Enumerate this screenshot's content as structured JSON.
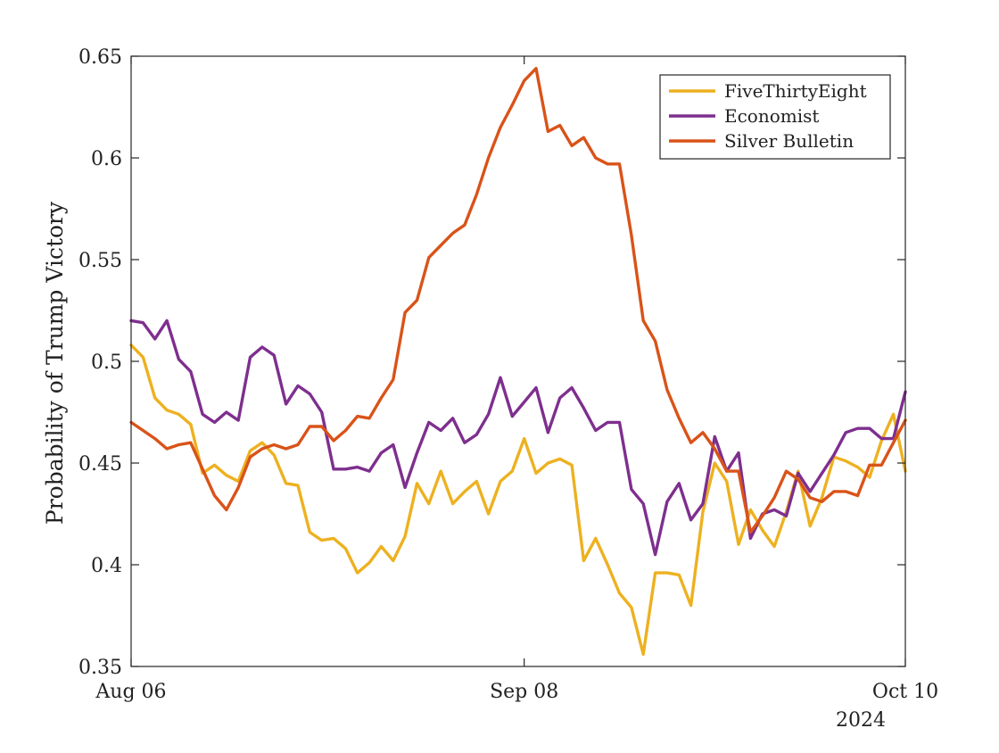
{
  "chart_data": {
    "type": "line",
    "title": "",
    "xlabel": "",
    "ylabel": "Probability of Trump Victory",
    "x_start": "2024-08-06",
    "x_end": "2024-10-10",
    "x_ticks": [
      {
        "date": "2024-08-06",
        "label": "Aug 06"
      },
      {
        "date": "2024-09-08",
        "label": "Sep 08"
      },
      {
        "date": "2024-10-10",
        "label": "Oct 10"
      }
    ],
    "x_year_label": "2024",
    "ylim": [
      0.35,
      0.65
    ],
    "y_ticks": [
      0.35,
      0.4,
      0.45,
      0.5,
      0.55,
      0.6,
      0.65
    ],
    "y_tick_labels": [
      "0.35",
      "0.4",
      "0.45",
      "0.5",
      "0.55",
      "0.6",
      "0.65"
    ],
    "grid": false,
    "legend_position": "top-right",
    "series": [
      {
        "name": "FiveThirtyEight",
        "color": "#EDB120",
        "points": [
          [
            "2024-08-06",
            0.508
          ],
          [
            "2024-08-07",
            0.502
          ],
          [
            "2024-08-08",
            0.482
          ],
          [
            "2024-08-09",
            0.476
          ],
          [
            "2024-08-10",
            0.474
          ],
          [
            "2024-08-11",
            0.469
          ],
          [
            "2024-08-12",
            0.445
          ],
          [
            "2024-08-13",
            0.449
          ],
          [
            "2024-08-14",
            0.444
          ],
          [
            "2024-08-15",
            0.441
          ],
          [
            "2024-08-16",
            0.456
          ],
          [
            "2024-08-17",
            0.46
          ],
          [
            "2024-08-18",
            0.454
          ],
          [
            "2024-08-19",
            0.44
          ],
          [
            "2024-08-20",
            0.439
          ],
          [
            "2024-08-21",
            0.416
          ],
          [
            "2024-08-22",
            0.412
          ],
          [
            "2024-08-23",
            0.413
          ],
          [
            "2024-08-24",
            0.408
          ],
          [
            "2024-08-25",
            0.396
          ],
          [
            "2024-08-26",
            0.401
          ],
          [
            "2024-08-27",
            0.409
          ],
          [
            "2024-08-28",
            0.402
          ],
          [
            "2024-08-29",
            0.414
          ],
          [
            "2024-08-30",
            0.44
          ],
          [
            "2024-08-31",
            0.43
          ],
          [
            "2024-09-01",
            0.446
          ],
          [
            "2024-09-02",
            0.43
          ],
          [
            "2024-09-03",
            0.436
          ],
          [
            "2024-09-04",
            0.441
          ],
          [
            "2024-09-05",
            0.425
          ],
          [
            "2024-09-06",
            0.441
          ],
          [
            "2024-09-07",
            0.446
          ],
          [
            "2024-09-08",
            0.462
          ],
          [
            "2024-09-09",
            0.445
          ],
          [
            "2024-09-10",
            0.45
          ],
          [
            "2024-09-11",
            0.452
          ],
          [
            "2024-09-12",
            0.449
          ],
          [
            "2024-09-13",
            0.402
          ],
          [
            "2024-09-14",
            0.413
          ],
          [
            "2024-09-15",
            0.4
          ],
          [
            "2024-09-16",
            0.386
          ],
          [
            "2024-09-17",
            0.379
          ],
          [
            "2024-09-18",
            0.356
          ],
          [
            "2024-09-19",
            0.396
          ],
          [
            "2024-09-20",
            0.396
          ],
          [
            "2024-09-21",
            0.395
          ],
          [
            "2024-09-22",
            0.38
          ],
          [
            "2024-09-23",
            0.426
          ],
          [
            "2024-09-24",
            0.45
          ],
          [
            "2024-09-25",
            0.441
          ],
          [
            "2024-09-26",
            0.41
          ],
          [
            "2024-09-27",
            0.427
          ],
          [
            "2024-09-28",
            0.417
          ],
          [
            "2024-09-29",
            0.409
          ],
          [
            "2024-09-30",
            0.426
          ],
          [
            "2024-10-01",
            0.446
          ],
          [
            "2024-10-02",
            0.419
          ],
          [
            "2024-10-03",
            0.433
          ],
          [
            "2024-10-04",
            0.453
          ],
          [
            "2024-10-05",
            0.451
          ],
          [
            "2024-10-06",
            0.448
          ],
          [
            "2024-10-07",
            0.443
          ],
          [
            "2024-10-08",
            0.461
          ],
          [
            "2024-10-09",
            0.474
          ],
          [
            "2024-10-10",
            0.446
          ]
        ]
      },
      {
        "name": "Economist",
        "color": "#7E2F8E",
        "points": [
          [
            "2024-08-06",
            0.52
          ],
          [
            "2024-08-07",
            0.519
          ],
          [
            "2024-08-08",
            0.511
          ],
          [
            "2024-08-09",
            0.52
          ],
          [
            "2024-08-10",
            0.501
          ],
          [
            "2024-08-11",
            0.495
          ],
          [
            "2024-08-12",
            0.474
          ],
          [
            "2024-08-13",
            0.47
          ],
          [
            "2024-08-14",
            0.475
          ],
          [
            "2024-08-15",
            0.471
          ],
          [
            "2024-08-16",
            0.502
          ],
          [
            "2024-08-17",
            0.507
          ],
          [
            "2024-08-18",
            0.503
          ],
          [
            "2024-08-19",
            0.479
          ],
          [
            "2024-08-20",
            0.488
          ],
          [
            "2024-08-21",
            0.484
          ],
          [
            "2024-08-22",
            0.475
          ],
          [
            "2024-08-23",
            0.447
          ],
          [
            "2024-08-24",
            0.447
          ],
          [
            "2024-08-25",
            0.448
          ],
          [
            "2024-08-26",
            0.446
          ],
          [
            "2024-08-27",
            0.455
          ],
          [
            "2024-08-28",
            0.459
          ],
          [
            "2024-08-29",
            0.438
          ],
          [
            "2024-08-30",
            0.455
          ],
          [
            "2024-08-31",
            0.47
          ],
          [
            "2024-09-01",
            0.466
          ],
          [
            "2024-09-02",
            0.472
          ],
          [
            "2024-09-03",
            0.46
          ],
          [
            "2024-09-04",
            0.464
          ],
          [
            "2024-09-05",
            0.474
          ],
          [
            "2024-09-06",
            0.492
          ],
          [
            "2024-09-07",
            0.473
          ],
          [
            "2024-09-08",
            0.48
          ],
          [
            "2024-09-09",
            0.487
          ],
          [
            "2024-09-10",
            0.465
          ],
          [
            "2024-09-11",
            0.482
          ],
          [
            "2024-09-12",
            0.487
          ],
          [
            "2024-09-13",
            0.477
          ],
          [
            "2024-09-14",
            0.466
          ],
          [
            "2024-09-15",
            0.47
          ],
          [
            "2024-09-16",
            0.47
          ],
          [
            "2024-09-17",
            0.437
          ],
          [
            "2024-09-18",
            0.43
          ],
          [
            "2024-09-19",
            0.405
          ],
          [
            "2024-09-20",
            0.431
          ],
          [
            "2024-09-21",
            0.44
          ],
          [
            "2024-09-22",
            0.422
          ],
          [
            "2024-09-23",
            0.43
          ],
          [
            "2024-09-24",
            0.463
          ],
          [
            "2024-09-25",
            0.446
          ],
          [
            "2024-09-26",
            0.455
          ],
          [
            "2024-09-27",
            0.413
          ],
          [
            "2024-09-28",
            0.425
          ],
          [
            "2024-09-29",
            0.427
          ],
          [
            "2024-09-30",
            0.424
          ],
          [
            "2024-10-01",
            0.445
          ],
          [
            "2024-10-02",
            0.436
          ],
          [
            "2024-10-03",
            0.445
          ],
          [
            "2024-10-04",
            0.454
          ],
          [
            "2024-10-05",
            0.465
          ],
          [
            "2024-10-06",
            0.467
          ],
          [
            "2024-10-07",
            0.467
          ],
          [
            "2024-10-08",
            0.462
          ],
          [
            "2024-10-09",
            0.462
          ],
          [
            "2024-10-10",
            0.485
          ]
        ]
      },
      {
        "name": "Silver Bulletin",
        "color": "#D95319",
        "points": [
          [
            "2024-08-06",
            0.47
          ],
          [
            "2024-08-07",
            0.466
          ],
          [
            "2024-08-08",
            0.462
          ],
          [
            "2024-08-09",
            0.457
          ],
          [
            "2024-08-10",
            0.459
          ],
          [
            "2024-08-11",
            0.46
          ],
          [
            "2024-08-12",
            0.447
          ],
          [
            "2024-08-13",
            0.434
          ],
          [
            "2024-08-14",
            0.427
          ],
          [
            "2024-08-15",
            0.438
          ],
          [
            "2024-08-16",
            0.453
          ],
          [
            "2024-08-17",
            0.457
          ],
          [
            "2024-08-18",
            0.459
          ],
          [
            "2024-08-19",
            0.457
          ],
          [
            "2024-08-20",
            0.459
          ],
          [
            "2024-08-21",
            0.468
          ],
          [
            "2024-08-22",
            0.468
          ],
          [
            "2024-08-23",
            0.461
          ],
          [
            "2024-08-24",
            0.466
          ],
          [
            "2024-08-25",
            0.473
          ],
          [
            "2024-08-26",
            0.472
          ],
          [
            "2024-08-27",
            0.482
          ],
          [
            "2024-08-28",
            0.491
          ],
          [
            "2024-08-29",
            0.524
          ],
          [
            "2024-08-30",
            0.53
          ],
          [
            "2024-08-31",
            0.551
          ],
          [
            "2024-09-01",
            0.557
          ],
          [
            "2024-09-02",
            0.563
          ],
          [
            "2024-09-03",
            0.567
          ],
          [
            "2024-09-04",
            0.582
          ],
          [
            "2024-09-05",
            0.6
          ],
          [
            "2024-09-06",
            0.615
          ],
          [
            "2024-09-07",
            0.626
          ],
          [
            "2024-09-08",
            0.638
          ],
          [
            "2024-09-09",
            0.644
          ],
          [
            "2024-09-10",
            0.613
          ],
          [
            "2024-09-11",
            0.616
          ],
          [
            "2024-09-12",
            0.606
          ],
          [
            "2024-09-13",
            0.61
          ],
          [
            "2024-09-14",
            0.6
          ],
          [
            "2024-09-15",
            0.597
          ],
          [
            "2024-09-16",
            0.597
          ],
          [
            "2024-09-17",
            0.562
          ],
          [
            "2024-09-18",
            0.52
          ],
          [
            "2024-09-19",
            0.51
          ],
          [
            "2024-09-20",
            0.486
          ],
          [
            "2024-09-21",
            0.472
          ],
          [
            "2024-09-22",
            0.46
          ],
          [
            "2024-09-23",
            0.465
          ],
          [
            "2024-09-24",
            0.457
          ],
          [
            "2024-09-25",
            0.446
          ],
          [
            "2024-09-26",
            0.446
          ],
          [
            "2024-09-27",
            0.416
          ],
          [
            "2024-09-28",
            0.424
          ],
          [
            "2024-09-29",
            0.433
          ],
          [
            "2024-09-30",
            0.446
          ],
          [
            "2024-10-01",
            0.442
          ],
          [
            "2024-10-02",
            0.433
          ],
          [
            "2024-10-03",
            0.431
          ],
          [
            "2024-10-04",
            0.436
          ],
          [
            "2024-10-05",
            0.436
          ],
          [
            "2024-10-06",
            0.434
          ],
          [
            "2024-10-07",
            0.449
          ],
          [
            "2024-10-08",
            0.449
          ],
          [
            "2024-10-09",
            0.46
          ],
          [
            "2024-10-10",
            0.471
          ]
        ]
      }
    ]
  }
}
